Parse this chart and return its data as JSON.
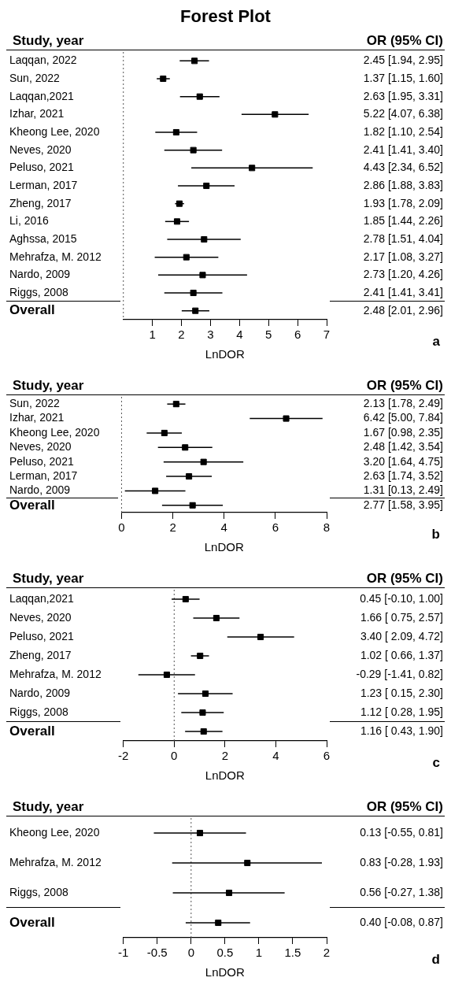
{
  "chart_data": [
    {
      "type": "scatter",
      "orientation": "horizontal",
      "title": "Forest Plot",
      "xlabel": "LnDOR",
      "annotations": [
        "Study, year",
        "OR (95% CI)",
        "a"
      ],
      "categories": [
        "Laqqan, 2022",
        "Sun, 2022",
        "Laqqan,2021",
        "Izhar, 2021",
        "Kheong Lee, 2020",
        "Neves, 2020",
        "Peluso, 2021",
        "Lerman, 2017",
        "Zheng, 2017",
        "Li, 2016",
        "Aghssa, 2015",
        "Mehrafza, M. 2012",
        "Nardo, 2009",
        "Riggs, 2008",
        "Overall"
      ],
      "series": [
        {
          "color": "#000000",
          "marker": "square",
          "values": [
            2.45,
            1.37,
            2.63,
            5.22,
            1.82,
            2.41,
            4.43,
            2.86,
            1.93,
            1.85,
            2.78,
            2.17,
            2.73,
            2.41,
            2.48
          ],
          "errors": [
            [
              1.94,
              2.95
            ],
            [
              1.15,
              1.6
            ],
            [
              1.95,
              3.31
            ],
            [
              4.07,
              6.38
            ],
            [
              1.1,
              2.54
            ],
            [
              1.41,
              3.4
            ],
            [
              2.34,
              6.52
            ],
            [
              1.88,
              3.83
            ],
            [
              1.78,
              2.09
            ],
            [
              1.44,
              2.26
            ],
            [
              1.51,
              4.04
            ],
            [
              1.08,
              3.27
            ],
            [
              1.2,
              4.26
            ],
            [
              1.41,
              3.41
            ],
            [
              2.01,
              2.96
            ]
          ],
          "value_labels": [
            "2.45 [1.94, 2.95]",
            "1.37 [1.15, 1.60]",
            "2.63 [1.95, 3.31]",
            "5.22 [4.07, 6.38]",
            "1.82 [1.10, 2.54]",
            "2.41 [1.41, 3.40]",
            "4.43 [2.34, 6.52]",
            "2.86 [1.88, 3.83]",
            "1.93 [1.78, 2.09]",
            "1.85 [1.44, 2.26]",
            "2.78 [1.51, 4.04]",
            "2.17 [1.08, 3.27]",
            "2.73 [1.20, 4.26]",
            "2.41 [1.41, 3.41]",
            "2.48 [2.01, 2.96]"
          ]
        }
      ],
      "xlim": [
        0,
        7
      ],
      "xticks": [
        1,
        2,
        3,
        4,
        5,
        6,
        7
      ],
      "ref_lines": [
        {
          "axis": "x",
          "value": 0,
          "color": "#555555",
          "line_style": "dotted"
        }
      ],
      "legend": false
    },
    {
      "type": "scatter",
      "orientation": "horizontal",
      "xlabel": "LnDOR",
      "annotations": [
        "Study, year",
        "OR (95% CI)",
        "b"
      ],
      "categories": [
        "Sun, 2022",
        "Izhar, 2021",
        "Kheong Lee, 2020",
        "Neves, 2020",
        "Peluso, 2021",
        "Lerman, 2017",
        "Nardo, 2009",
        "Overall"
      ],
      "series": [
        {
          "color": "#000000",
          "marker": "square",
          "values": [
            2.13,
            6.42,
            1.67,
            2.48,
            3.2,
            2.63,
            1.31,
            2.77
          ],
          "errors": [
            [
              1.78,
              2.49
            ],
            [
              5.0,
              7.84
            ],
            [
              0.98,
              2.35
            ],
            [
              1.42,
              3.54
            ],
            [
              1.64,
              4.75
            ],
            [
              1.74,
              3.52
            ],
            [
              0.13,
              2.49
            ],
            [
              1.58,
              3.95
            ]
          ],
          "value_labels": [
            "2.13 [1.78, 2.49]",
            "6.42 [5.00, 7.84]",
            "1.67 [0.98, 2.35]",
            "2.48 [1.42, 3.54]",
            "3.20 [1.64, 4.75]",
            "2.63 [1.74, 3.52]",
            "1.31 [0.13, 2.49]",
            "2.77 [1.58, 3.95]"
          ]
        }
      ],
      "xlim": [
        0,
        8
      ],
      "xticks": [
        0,
        2,
        4,
        6,
        8
      ],
      "ref_lines": [
        {
          "axis": "x",
          "value": 0,
          "color": "#555555",
          "line_style": "dotted"
        }
      ],
      "legend": false
    },
    {
      "type": "scatter",
      "orientation": "horizontal",
      "xlabel": "LnDOR",
      "annotations": [
        "Study, year",
        "OR (95% CI)",
        "c"
      ],
      "categories": [
        "Laqqan,2021",
        "Neves, 2020",
        "Peluso, 2021",
        "Zheng, 2017",
        "Mehrafza, M. 2012",
        "Nardo, 2009",
        "Riggs, 2008",
        "Overall"
      ],
      "series": [
        {
          "color": "#000000",
          "marker": "square",
          "values": [
            0.45,
            1.66,
            3.4,
            1.02,
            -0.29,
            1.23,
            1.12,
            1.16
          ],
          "errors": [
            [
              -0.1,
              1.0
            ],
            [
              0.75,
              2.57
            ],
            [
              2.09,
              4.72
            ],
            [
              0.66,
              1.37
            ],
            [
              -1.41,
              0.82
            ],
            [
              0.15,
              2.3
            ],
            [
              0.28,
              1.95
            ],
            [
              0.43,
              1.9
            ]
          ],
          "value_labels": [
            "0.45 [-0.10, 1.00]",
            "1.66 [ 0.75, 2.57]",
            "3.40 [ 2.09, 4.72]",
            "1.02 [ 0.66, 1.37]",
            "-0.29 [-1.41, 0.82]",
            "1.23 [ 0.15, 2.30]",
            "1.12 [ 0.28, 1.95]",
            "1.16 [ 0.43, 1.90]"
          ]
        }
      ],
      "xlim": [
        -2,
        6
      ],
      "xticks": [
        -2,
        0,
        2,
        4,
        6
      ],
      "ref_lines": [
        {
          "axis": "x",
          "value": 0,
          "color": "#555555",
          "line_style": "dotted"
        }
      ],
      "legend": false
    },
    {
      "type": "scatter",
      "orientation": "horizontal",
      "xlabel": "LnDOR",
      "annotations": [
        "Study, year",
        "OR (95% CI)",
        "d"
      ],
      "categories": [
        "Kheong Lee, 2020",
        "Mehrafza, M. 2012",
        "Riggs, 2008",
        "Overall"
      ],
      "series": [
        {
          "color": "#000000",
          "marker": "square",
          "values": [
            0.13,
            0.83,
            0.56,
            0.4
          ],
          "errors": [
            [
              -0.55,
              0.81
            ],
            [
              -0.28,
              1.93
            ],
            [
              -0.27,
              1.38
            ],
            [
              -0.08,
              0.87
            ]
          ],
          "value_labels": [
            "0.13 [-0.55, 0.81]",
            "0.83 [-0.28, 1.93]",
            "0.56 [-0.27, 1.38]",
            "0.40 [-0.08, 0.87]"
          ]
        }
      ],
      "xlim": [
        -1,
        2
      ],
      "xticks": [
        -1,
        -0.5,
        0,
        0.5,
        1,
        1.5,
        2
      ],
      "ref_lines": [
        {
          "axis": "x",
          "value": 0,
          "color": "#555555",
          "line_style": "dotted"
        }
      ],
      "legend": false
    }
  ]
}
